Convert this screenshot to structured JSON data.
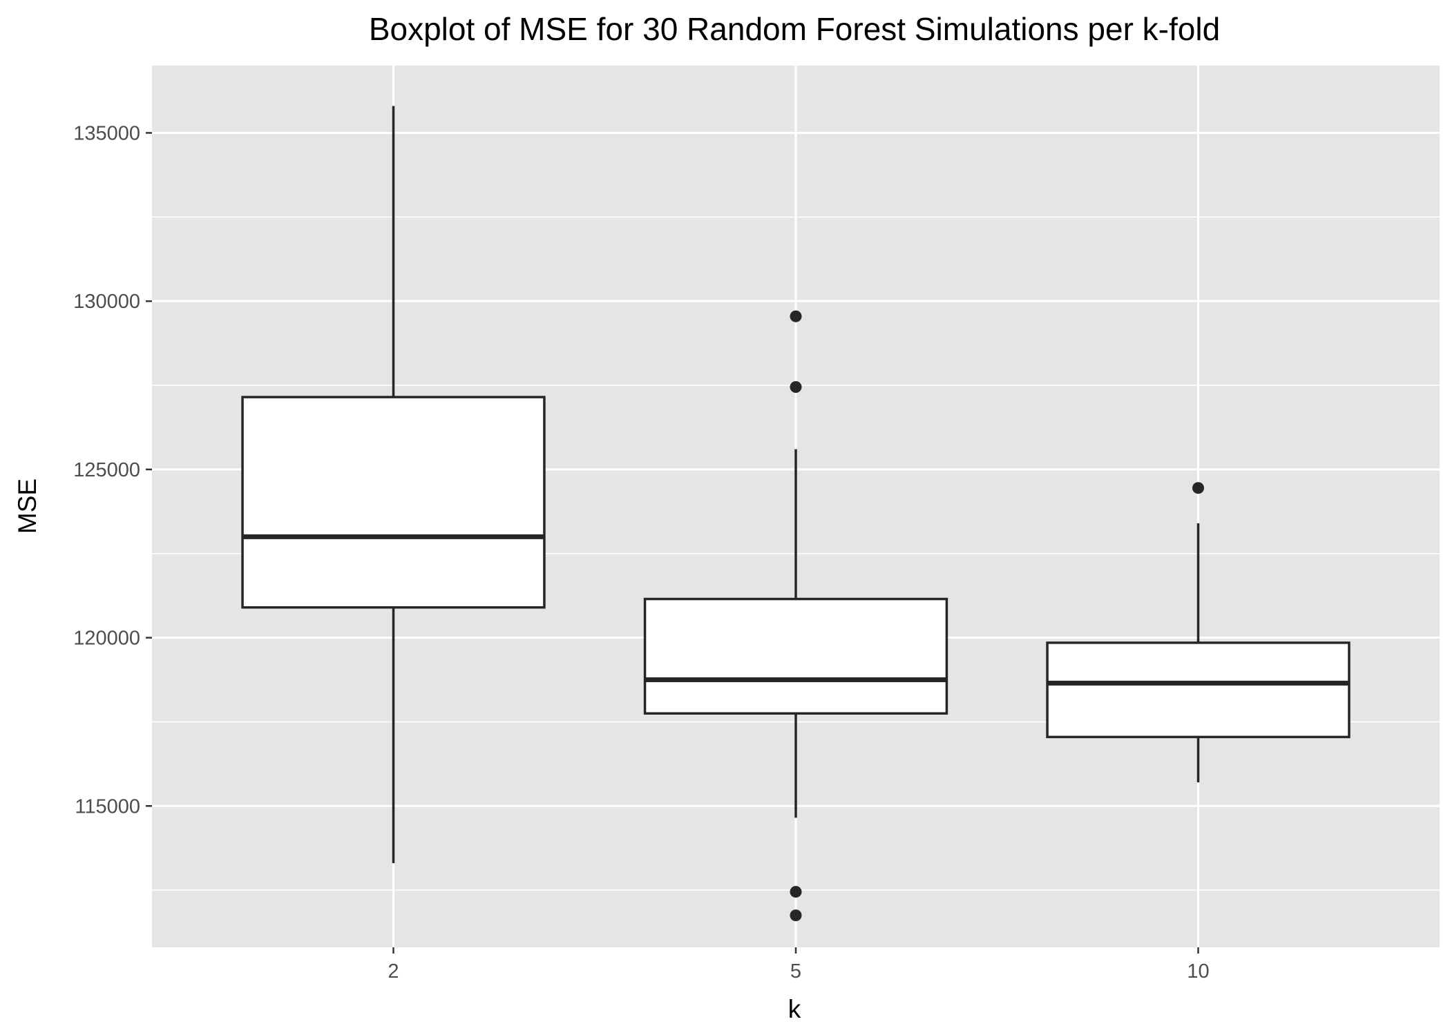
{
  "chart_data": {
    "type": "boxplot",
    "title": "Boxplot of MSE for 30 Random Forest Simulations per k-fold",
    "xlabel": "k",
    "ylabel": "MSE",
    "categories": [
      "2",
      "5",
      "10"
    ],
    "boxes": [
      {
        "category": "2",
        "whisker_low": 113300,
        "q1": 120900,
        "median": 123000,
        "q3": 127150,
        "whisker_high": 135800,
        "outliers": []
      },
      {
        "category": "5",
        "whisker_low": 114650,
        "q1": 117750,
        "median": 118750,
        "q3": 121150,
        "whisker_high": 125600,
        "outliers": [
          129550,
          127450,
          112450,
          111750
        ]
      },
      {
        "category": "10",
        "whisker_low": 115700,
        "q1": 117050,
        "median": 118650,
        "q3": 119850,
        "whisker_high": 123400,
        "outliers": [
          124450
        ]
      }
    ],
    "yticks": [
      115000,
      120000,
      125000,
      130000,
      135000
    ],
    "yticks_labels": [
      "115000",
      "120000",
      "125000",
      "130000",
      "135000"
    ],
    "yminor": [
      112500,
      117500,
      122500,
      127500,
      132500
    ],
    "ylim": [
      110800,
      137000
    ],
    "grid": true,
    "legend": "none",
    "colors": {
      "panel": "#e5e5e5",
      "grid": "#ffffff",
      "box_fill": "#ffffff",
      "box_stroke": "#262626",
      "outlier": "#262626",
      "tick_label": "#4d4d4d",
      "tick_mark": "#333333"
    }
  }
}
